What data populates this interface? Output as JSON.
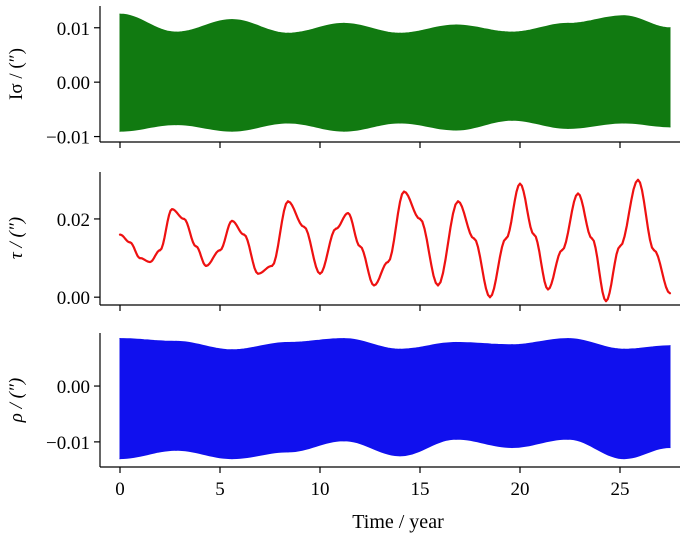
{
  "figure": {
    "xlabel": "Time / year"
  },
  "chart_data": [
    {
      "type": "area",
      "name": "I-sigma",
      "ylabel": "Iσ / (″)",
      "color": "#117a11",
      "xlim": [
        -1,
        28
      ],
      "ylim": [
        -0.011,
        0.014
      ],
      "yticks": [
        0.01,
        0.0,
        -0.01
      ],
      "ytick_labels": [
        "0.01",
        "0.00",
        "−0.01"
      ],
      "x": [
        0,
        2.8,
        5.6,
        8.4,
        11.2,
        14,
        16.8,
        19.6,
        22.4,
        25.2,
        27.5
      ],
      "upper": [
        0.0125,
        0.0092,
        0.0115,
        0.009,
        0.0108,
        0.009,
        0.0105,
        0.0092,
        0.0108,
        0.0122,
        0.01
      ],
      "lower": [
        -0.009,
        -0.0078,
        -0.009,
        -0.0075,
        -0.009,
        -0.0075,
        -0.0088,
        -0.007,
        -0.0085,
        -0.0075,
        -0.0082
      ]
    },
    {
      "type": "line",
      "name": "tau",
      "ylabel": "τ / (″)",
      "color": "#ee1111",
      "xlim": [
        -1,
        28
      ],
      "ylim": [
        -0.002,
        0.032
      ],
      "yticks": [
        0.02,
        0.0
      ],
      "ytick_labels": [
        "0.02",
        "0.00"
      ],
      "x": [
        0,
        0.5,
        1.0,
        1.5,
        2.0,
        2.6,
        3.2,
        3.8,
        4.3,
        5.0,
        5.6,
        6.2,
        6.9,
        7.6,
        8.4,
        9.2,
        10.0,
        10.8,
        11.4,
        12.0,
        12.7,
        13.4,
        14.2,
        15.0,
        15.9,
        16.9,
        17.7,
        18.5,
        19.3,
        20.0,
        20.7,
        21.4,
        22.1,
        22.9,
        23.6,
        24.3,
        25.0,
        25.9,
        26.7,
        27.5
      ],
      "y": [
        0.016,
        0.014,
        0.01,
        0.009,
        0.012,
        0.0225,
        0.02,
        0.013,
        0.008,
        0.012,
        0.0195,
        0.016,
        0.006,
        0.008,
        0.0245,
        0.018,
        0.006,
        0.0175,
        0.0215,
        0.013,
        0.003,
        0.009,
        0.027,
        0.02,
        0.003,
        0.0245,
        0.015,
        0.0,
        0.015,
        0.029,
        0.016,
        0.002,
        0.012,
        0.0265,
        0.015,
        -0.001,
        0.013,
        0.03,
        0.012,
        0.001
      ]
    },
    {
      "type": "area",
      "name": "rho",
      "ylabel": "ρ / (″)",
      "color": "#1010ee",
      "xlim": [
        -1,
        28
      ],
      "ylim": [
        -0.0145,
        0.0095
      ],
      "yticks": [
        0.0,
        -0.01
      ],
      "ytick_labels": [
        "0.00",
        "−0.01"
      ],
      "x": [
        0,
        2.8,
        5.6,
        8.4,
        11.2,
        14,
        16.8,
        19.6,
        22.4,
        25.2,
        27.5
      ],
      "upper": [
        0.0085,
        0.008,
        0.0065,
        0.0078,
        0.0085,
        0.0066,
        0.0078,
        0.0074,
        0.0085,
        0.0066,
        0.0072
      ],
      "lower": [
        -0.013,
        -0.0115,
        -0.013,
        -0.0118,
        -0.0098,
        -0.0125,
        -0.0095,
        -0.011,
        -0.0095,
        -0.013,
        -0.011
      ]
    }
  ],
  "xaxis": {
    "ticks": [
      0,
      5,
      10,
      15,
      20,
      25
    ],
    "tick_labels": [
      "0",
      "5",
      "10",
      "15",
      "20",
      "25"
    ]
  }
}
